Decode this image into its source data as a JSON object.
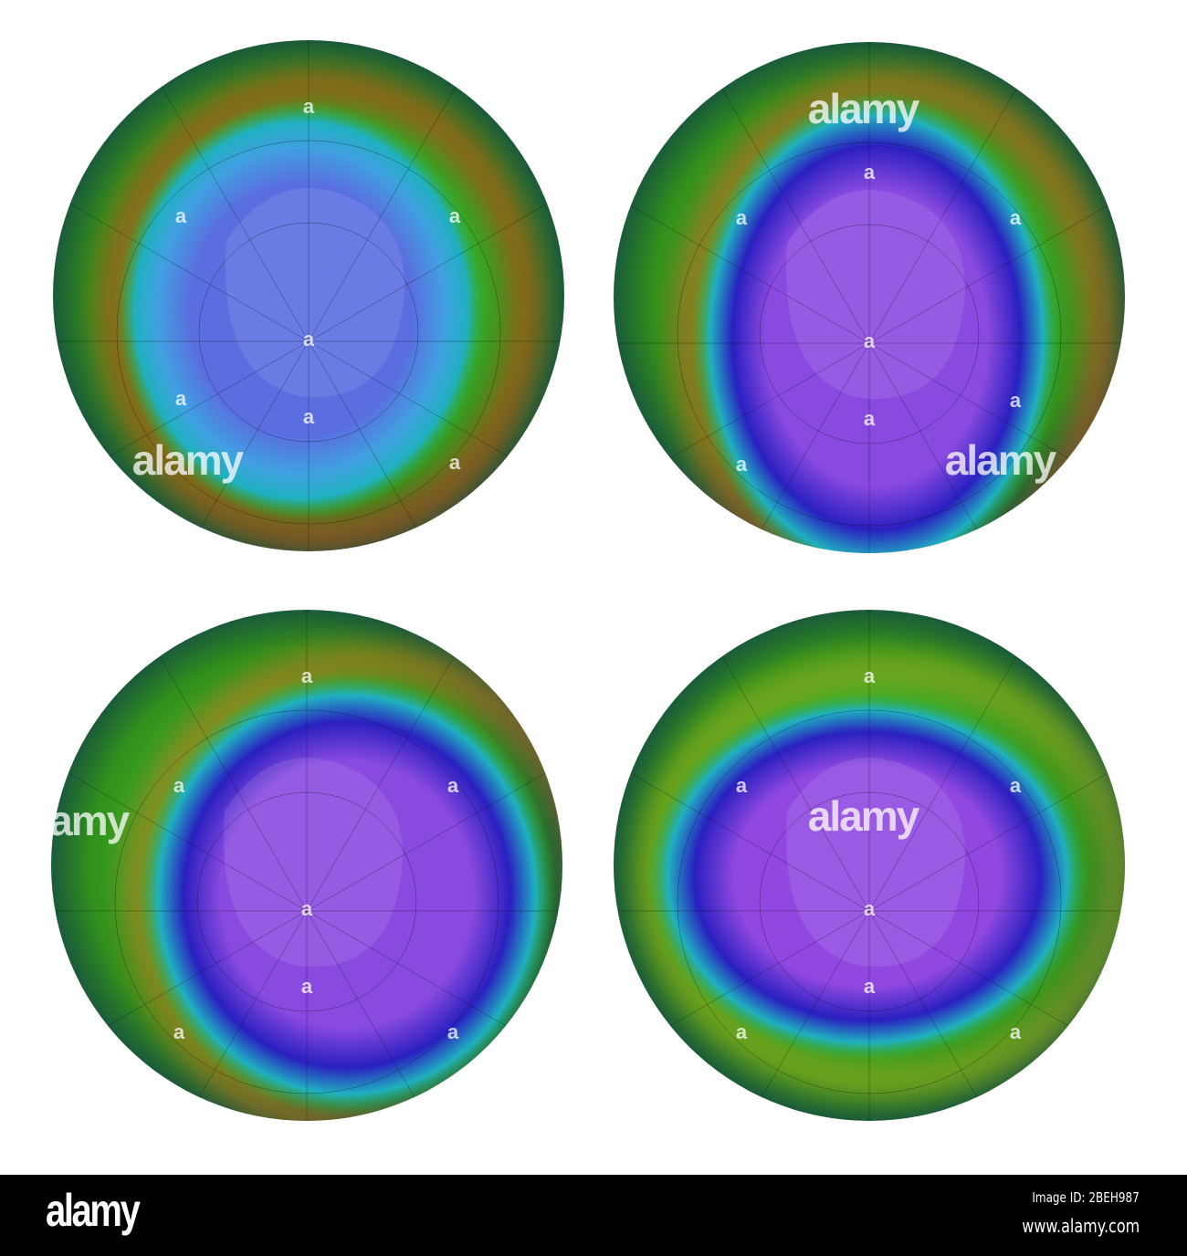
{
  "maps": [
    {
      "id": "top-left",
      "hole": "weak",
      "hole_color": "#5a6ee0",
      "ring_color": "#d8401a"
    },
    {
      "id": "top-right",
      "hole": "large",
      "hole_color": "#8a4ae0",
      "ring_color": "#d85a20"
    },
    {
      "id": "bottom-left",
      "hole": "large",
      "hole_color": "#8a4ae0",
      "ring_color": "#d0701e"
    },
    {
      "id": "bottom-right",
      "hole": "large",
      "hole_color": "#9048e0",
      "ring_color": "#a8b020"
    }
  ],
  "watermark": {
    "text": "alamy",
    "small": "a"
  },
  "footer": {
    "logo": "alamy",
    "image_id": "Image ID: 2BEH987",
    "website": "www.alamy.com"
  }
}
